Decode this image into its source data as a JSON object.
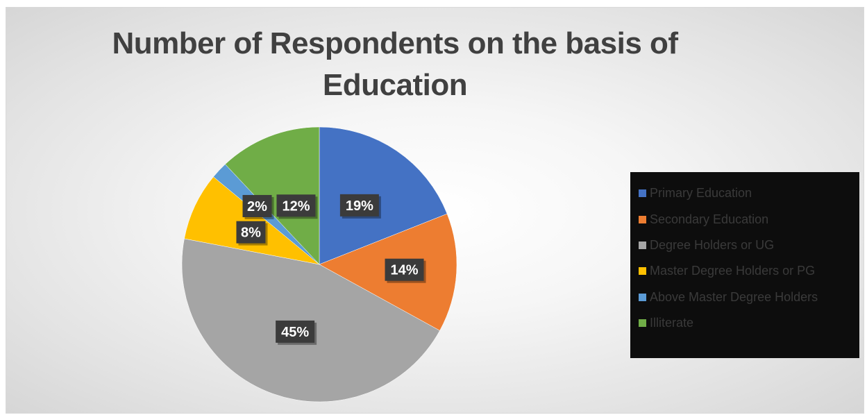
{
  "chart_data": {
    "type": "pie",
    "title": "Number of Respondents on the basis of Education",
    "categories": [
      "Primary Education",
      "Secondary Education",
      "Degree Holders or UG",
      "Master Degree Holders or PG",
      "Above Master Degree Holders",
      "Illiterate"
    ],
    "values": [
      19,
      14,
      45,
      8,
      2,
      12
    ],
    "data_labels": [
      "19%",
      "14%",
      "45%",
      "8%",
      "2%",
      "12%"
    ],
    "colors": [
      "#4472C4",
      "#ED7D31",
      "#A5A5A5",
      "#FFC000",
      "#5B9BD5",
      "#70AD47"
    ],
    "legend_position": "right"
  }
}
